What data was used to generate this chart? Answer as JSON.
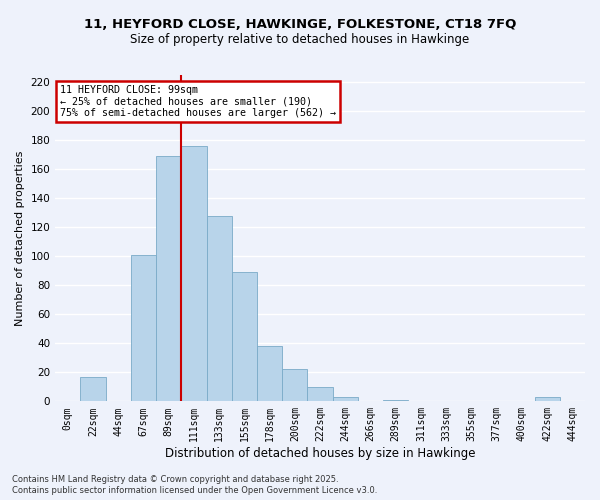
{
  "title": "11, HEYFORD CLOSE, HAWKINGE, FOLKESTONE, CT18 7FQ",
  "subtitle": "Size of property relative to detached houses in Hawkinge",
  "bar_color": "#b8d4ea",
  "bar_edge_color": "#7aaac8",
  "bin_labels": [
    "0sqm",
    "22sqm",
    "44sqm",
    "67sqm",
    "89sqm",
    "111sqm",
    "133sqm",
    "155sqm",
    "178sqm",
    "200sqm",
    "222sqm",
    "244sqm",
    "266sqm",
    "289sqm",
    "311sqm",
    "333sqm",
    "355sqm",
    "377sqm",
    "400sqm",
    "422sqm",
    "444sqm"
  ],
  "bin_counts": [
    0,
    17,
    0,
    101,
    169,
    176,
    128,
    89,
    38,
    22,
    10,
    3,
    0,
    1,
    0,
    0,
    0,
    0,
    0,
    3,
    0
  ],
  "red_line_x": 4.5,
  "annotation_title": "11 HEYFORD CLOSE: 99sqm",
  "annotation_line2": "← 25% of detached houses are smaller (190)",
  "annotation_line3": "75% of semi-detached houses are larger (562) →",
  "xlabel": "Distribution of detached houses by size in Hawkinge",
  "ylabel": "Number of detached properties",
  "ylim": [
    0,
    225
  ],
  "yticks": [
    0,
    20,
    40,
    60,
    80,
    100,
    120,
    140,
    160,
    180,
    200,
    220
  ],
  "footnote1": "Contains HM Land Registry data © Crown copyright and database right 2025.",
  "footnote2": "Contains public sector information licensed under the Open Government Licence v3.0.",
  "background_color": "#eef2fb",
  "grid_color": "#ffffff",
  "annotation_box_color": "#ffffff",
  "annotation_box_edge": "#cc0000",
  "red_line_color": "#cc0000",
  "title_fontsize": 9.5,
  "subtitle_fontsize": 8.5
}
